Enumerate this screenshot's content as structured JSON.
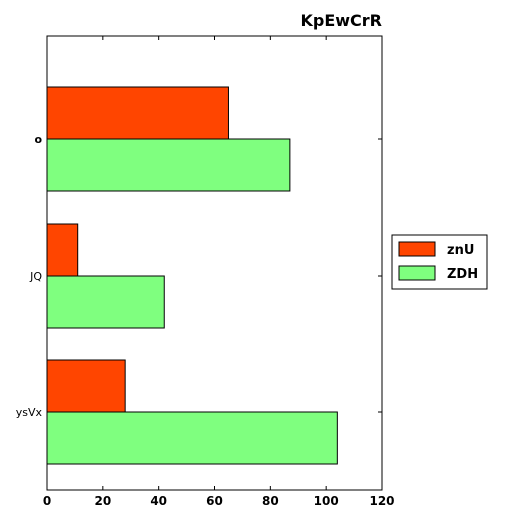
{
  "chart_data": {
    "type": "bar",
    "orientation": "horizontal",
    "title": "KpEwCrR",
    "categories": [
      "o",
      "JQ",
      "ysVx"
    ],
    "series": [
      {
        "name": "znU",
        "color": "#ff4500",
        "values": [
          65,
          11,
          28
        ]
      },
      {
        "name": "ZDH",
        "color": "#7fff7f",
        "values": [
          87,
          42,
          104
        ]
      }
    ],
    "xlim": [
      0,
      120
    ],
    "xticks": [
      0,
      20,
      40,
      60,
      80,
      100,
      120
    ],
    "grid": false,
    "legend": "center-right"
  }
}
